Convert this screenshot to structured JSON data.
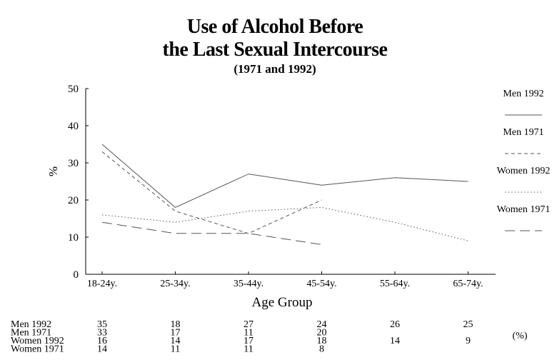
{
  "chart_data": {
    "type": "line",
    "title": "Use of Alcohol Before",
    "title_line2": "the Last Sexual Intercourse",
    "subtitle": "(1971 and 1992)",
    "xlabel": "Age Group",
    "ylabel": "%",
    "ylim": [
      0,
      50
    ],
    "yticks": [
      "0",
      "10",
      "20",
      "30",
      "40",
      "50"
    ],
    "categories": [
      "18-24y.",
      "25-34y.",
      "35-44y.",
      "45-54y.",
      "55-64y.",
      "65-74y."
    ],
    "grid": false,
    "legend_position": "right",
    "series": [
      {
        "name": "Men 1992",
        "values": [
          35,
          18,
          27,
          24,
          26,
          25
        ],
        "table": [
          "35",
          "18",
          "27",
          "24",
          "26",
          "25"
        ],
        "color": "#555555",
        "dash": "solid"
      },
      {
        "name": "Men 1971",
        "values": [
          33,
          17,
          11,
          20,
          null,
          null
        ],
        "table": [
          "33",
          "17",
          "11",
          "20",
          "",
          ""
        ],
        "color": "#555555",
        "dash": "dashed"
      },
      {
        "name": "Women 1992",
        "values": [
          16,
          14,
          17,
          18,
          14,
          9
        ],
        "table": [
          "16",
          "14",
          "17",
          "18",
          "14",
          "9"
        ],
        "color": "#555555",
        "dash": "dotted"
      },
      {
        "name": "Women 1971",
        "values": [
          14,
          11,
          11,
          8,
          null,
          null
        ],
        "table": [
          "14",
          "11",
          "11",
          "8",
          "",
          ""
        ],
        "color": "#555555",
        "dash": "longdash"
      }
    ],
    "table_unit": "(%)"
  }
}
